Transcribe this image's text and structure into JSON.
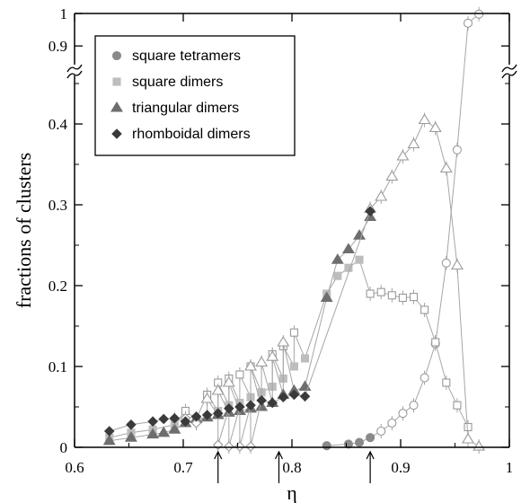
{
  "chart_data": {
    "type": "scatter",
    "xlabel": "η",
    "ylabel": "fractions of clusters",
    "xlim": [
      0.6,
      1.0
    ],
    "ylim_lower": [
      0,
      0.45
    ],
    "ylim_upper": [
      0.87,
      1.0
    ],
    "axis_break": "between 0.45 and 0.87 on the y axis",
    "x_ticks": [
      {
        "value": 0.6,
        "label": "0.6"
      },
      {
        "value": 0.7,
        "label": "0.7"
      },
      {
        "value": 0.8,
        "label": "0.8"
      },
      {
        "value": 0.9,
        "label": "0.9"
      },
      {
        "value": 1.0,
        "label": "1"
      }
    ],
    "y_ticks": [
      {
        "value": 0,
        "label": "0"
      },
      {
        "value": 0.1,
        "label": "0.1"
      },
      {
        "value": 0.2,
        "label": "0.2"
      },
      {
        "value": 0.3,
        "label": "0.3"
      },
      {
        "value": 0.4,
        "label": "0.4"
      },
      {
        "value": 0.9,
        "label": "0.9"
      },
      {
        "value": 1.0,
        "label": "1"
      }
    ],
    "arrows_x": [
      0.732,
      0.788,
      0.872
    ],
    "legend": {
      "position": "top-left",
      "entries": [
        {
          "marker": "circle",
          "color": "#8a8a8a",
          "label": "square tetramers"
        },
        {
          "marker": "square",
          "color": "#bdbdbd",
          "label": "square dimers"
        },
        {
          "marker": "triangle",
          "color": "#6e6e6e",
          "label": "triangular dimers"
        },
        {
          "marker": "diamond",
          "color": "#3a3a3a",
          "label": "rhomboidal dimers"
        }
      ]
    },
    "series": [
      {
        "marker": "circle",
        "color": "#8a8a8a",
        "points": [
          {
            "x": 0.832,
            "y": 0.002
          },
          {
            "x": 0.852,
            "y": 0.004
          },
          {
            "x": 0.862,
            "y": 0.006
          },
          {
            "x": 0.872,
            "y": 0.012
          }
        ],
        "open_points": [
          {
            "x": 0.882,
            "y": 0.02
          },
          {
            "x": 0.892,
            "y": 0.03
          },
          {
            "x": 0.902,
            "y": 0.042
          },
          {
            "x": 0.912,
            "y": 0.052
          },
          {
            "x": 0.922,
            "y": 0.086
          },
          {
            "x": 0.932,
            "y": 0.128
          },
          {
            "x": 0.942,
            "y": 0.228
          },
          {
            "x": 0.952,
            "y": 0.368
          },
          {
            "x": 0.962,
            "y": 0.97
          },
          {
            "x": 0.972,
            "y": 0.998
          }
        ]
      },
      {
        "marker": "square",
        "color": "#bdbdbd",
        "points": [
          {
            "x": 0.632,
            "y": 0.012
          },
          {
            "x": 0.652,
            "y": 0.018
          },
          {
            "x": 0.672,
            "y": 0.022
          },
          {
            "x": 0.692,
            "y": 0.028
          },
          {
            "x": 0.712,
            "y": 0.035
          },
          {
            "x": 0.732,
            "y": 0.045
          },
          {
            "x": 0.742,
            "y": 0.052
          },
          {
            "x": 0.752,
            "y": 0.055
          },
          {
            "x": 0.762,
            "y": 0.062
          },
          {
            "x": 0.772,
            "y": 0.068
          },
          {
            "x": 0.782,
            "y": 0.075
          },
          {
            "x": 0.792,
            "y": 0.085
          },
          {
            "x": 0.802,
            "y": 0.1
          },
          {
            "x": 0.812,
            "y": 0.11
          },
          {
            "x": 0.832,
            "y": 0.19
          },
          {
            "x": 0.842,
            "y": 0.212
          },
          {
            "x": 0.852,
            "y": 0.222
          },
          {
            "x": 0.862,
            "y": 0.232
          }
        ],
        "open_points": [
          {
            "x": 0.702,
            "y": 0.045
          },
          {
            "x": 0.722,
            "y": 0.065
          },
          {
            "x": 0.732,
            "y": 0.08
          },
          {
            "x": 0.742,
            "y": 0.085
          },
          {
            "x": 0.752,
            "y": 0.09
          },
          {
            "x": 0.762,
            "y": 0.1
          },
          {
            "x": 0.782,
            "y": 0.115
          },
          {
            "x": 0.792,
            "y": 0.125
          },
          {
            "x": 0.802,
            "y": 0.142
          },
          {
            "x": 0.872,
            "y": 0.19
          },
          {
            "x": 0.882,
            "y": 0.192
          },
          {
            "x": 0.892,
            "y": 0.188
          },
          {
            "x": 0.902,
            "y": 0.185
          },
          {
            "x": 0.912,
            "y": 0.186
          },
          {
            "x": 0.922,
            "y": 0.17
          },
          {
            "x": 0.932,
            "y": 0.13
          },
          {
            "x": 0.942,
            "y": 0.08
          },
          {
            "x": 0.952,
            "y": 0.052
          },
          {
            "x": 0.962,
            "y": 0.025
          }
        ]
      },
      {
        "marker": "triangle",
        "color": "#6e6e6e",
        "points": [
          {
            "x": 0.632,
            "y": 0.008
          },
          {
            "x": 0.652,
            "y": 0.012
          },
          {
            "x": 0.672,
            "y": 0.016
          },
          {
            "x": 0.682,
            "y": 0.018
          },
          {
            "x": 0.692,
            "y": 0.022
          },
          {
            "x": 0.702,
            "y": 0.03
          },
          {
            "x": 0.712,
            "y": 0.035
          },
          {
            "x": 0.722,
            "y": 0.037
          },
          {
            "x": 0.732,
            "y": 0.04
          },
          {
            "x": 0.742,
            "y": 0.043
          },
          {
            "x": 0.752,
            "y": 0.045
          },
          {
            "x": 0.762,
            "y": 0.048
          },
          {
            "x": 0.772,
            "y": 0.05
          },
          {
            "x": 0.782,
            "y": 0.055
          },
          {
            "x": 0.792,
            "y": 0.065
          },
          {
            "x": 0.802,
            "y": 0.07
          },
          {
            "x": 0.812,
            "y": 0.075
          },
          {
            "x": 0.832,
            "y": 0.185
          },
          {
            "x": 0.842,
            "y": 0.232
          },
          {
            "x": 0.852,
            "y": 0.245
          },
          {
            "x": 0.862,
            "y": 0.262
          },
          {
            "x": 0.872,
            "y": 0.285
          }
        ],
        "open_points": [
          {
            "x": 0.722,
            "y": 0.06
          },
          {
            "x": 0.732,
            "y": 0.07
          },
          {
            "x": 0.742,
            "y": 0.08
          },
          {
            "x": 0.762,
            "y": 0.1
          },
          {
            "x": 0.772,
            "y": 0.105
          },
          {
            "x": 0.782,
            "y": 0.112
          },
          {
            "x": 0.792,
            "y": 0.13
          },
          {
            "x": 0.872,
            "y": 0.295
          },
          {
            "x": 0.882,
            "y": 0.31
          },
          {
            "x": 0.892,
            "y": 0.335
          },
          {
            "x": 0.902,
            "y": 0.36
          },
          {
            "x": 0.912,
            "y": 0.375
          },
          {
            "x": 0.922,
            "y": 0.405
          },
          {
            "x": 0.932,
            "y": 0.395
          },
          {
            "x": 0.942,
            "y": 0.345
          },
          {
            "x": 0.952,
            "y": 0.225
          },
          {
            "x": 0.962,
            "y": 0.01
          },
          {
            "x": 0.972,
            "y": 0.001
          }
        ]
      },
      {
        "marker": "diamond",
        "color": "#3a3a3a",
        "points": [
          {
            "x": 0.632,
            "y": 0.02
          },
          {
            "x": 0.652,
            "y": 0.028
          },
          {
            "x": 0.672,
            "y": 0.032
          },
          {
            "x": 0.682,
            "y": 0.035
          },
          {
            "x": 0.692,
            "y": 0.036
          },
          {
            "x": 0.702,
            "y": 0.032
          },
          {
            "x": 0.712,
            "y": 0.038
          },
          {
            "x": 0.722,
            "y": 0.04
          },
          {
            "x": 0.732,
            "y": 0.042
          },
          {
            "x": 0.742,
            "y": 0.048
          },
          {
            "x": 0.752,
            "y": 0.05
          },
          {
            "x": 0.762,
            "y": 0.052
          },
          {
            "x": 0.772,
            "y": 0.058
          },
          {
            "x": 0.782,
            "y": 0.055
          },
          {
            "x": 0.792,
            "y": 0.062
          },
          {
            "x": 0.802,
            "y": 0.065
          },
          {
            "x": 0.812,
            "y": 0.063
          },
          {
            "x": 0.872,
            "y": 0.292
          }
        ],
        "open_points": [
          {
            "x": 0.692,
            "y": 0.035
          },
          {
            "x": 0.702,
            "y": 0.036
          },
          {
            "x": 0.712,
            "y": 0.03
          },
          {
            "x": 0.732,
            "y": 0.003
          },
          {
            "x": 0.742,
            "y": 0.001
          },
          {
            "x": 0.752,
            "y": 0.001
          },
          {
            "x": 0.762,
            "y": 0.001
          }
        ]
      }
    ]
  }
}
